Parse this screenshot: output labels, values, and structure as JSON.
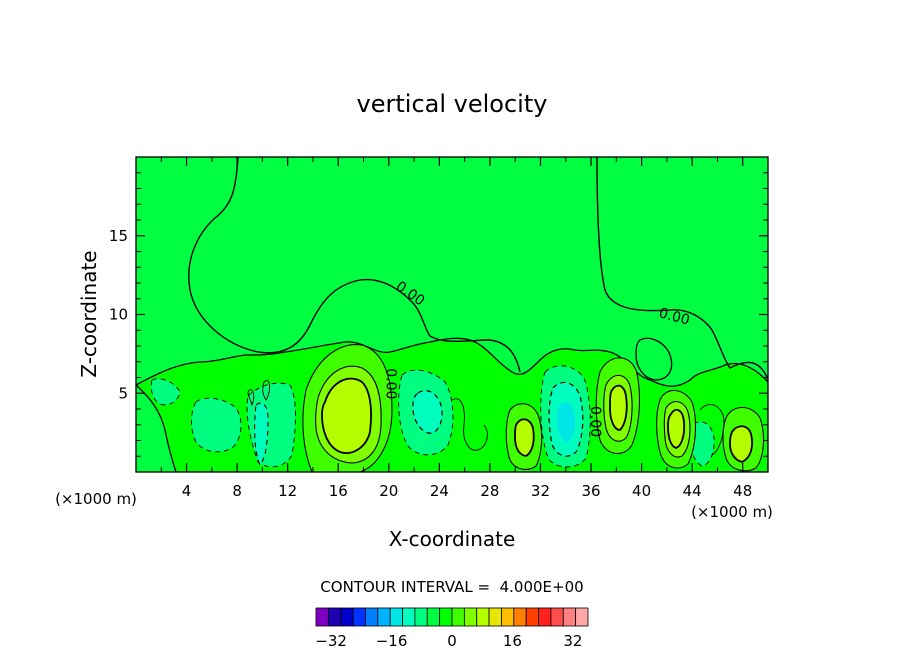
{
  "chart_data": {
    "type": "contour",
    "title": "vertical velocity",
    "xlabel": "X-coordinate",
    "ylabel": "Z-coordinate",
    "x_unit_label": "(×1000 m)",
    "x_unit_label_right": "(×1000 m)",
    "xlim": [
      0,
      50
    ],
    "ylim": [
      0,
      20
    ],
    "x_ticks": [
      4,
      8,
      12,
      16,
      20,
      24,
      28,
      32,
      36,
      40,
      44,
      48
    ],
    "y_ticks": [
      5,
      10,
      15
    ],
    "contour_interval_text": "CONTOUR INTERVAL =  4.000E+00",
    "contour_interval": 4.0,
    "contour_labels": [
      {
        "text": "0.00",
        "x": 21.5,
        "z": 11.1,
        "angle": 35
      },
      {
        "text": "0.00",
        "x": 42.5,
        "z": 9.6,
        "angle": 15
      },
      {
        "text": "0.00",
        "x": 19.8,
        "z": 5.6,
        "angle": 90
      },
      {
        "text": "0.00",
        "x": 36.0,
        "z": 3.2,
        "angle": 90
      }
    ],
    "colorbar": {
      "min": -36,
      "max": 36,
      "step": 4,
      "tick_labels": [
        "-32",
        "-16",
        "0",
        "16",
        "32"
      ],
      "tick_values": [
        -32,
        -16,
        0,
        16,
        32
      ],
      "colors": [
        "#7f00bf",
        "#1f00b3",
        "#0000cc",
        "#0033ff",
        "#0080ff",
        "#00b3ff",
        "#00e6e6",
        "#00ffbf",
        "#00ff80",
        "#00ff40",
        "#00ff00",
        "#40ff00",
        "#80ff00",
        "#b3ff00",
        "#e6e600",
        "#ffbf00",
        "#ff8000",
        "#ff4000",
        "#ff2020",
        "#ff4d4d",
        "#ff8080",
        "#ffa6a6"
      ]
    },
    "features": [
      {
        "kind": "updraft",
        "x": 17.5,
        "z": 3.5,
        "peak": 12
      },
      {
        "kind": "downdraft",
        "x": 23.0,
        "z": 3.5,
        "peak": -8
      },
      {
        "kind": "updraft",
        "x": 30.5,
        "z": 2.3,
        "peak": 8
      },
      {
        "kind": "downdraft",
        "x": 33.5,
        "z": 3.0,
        "peak": -12
      },
      {
        "kind": "updraft",
        "x": 38.5,
        "z": 4.5,
        "peak": 8
      },
      {
        "kind": "updraft",
        "x": 42.8,
        "z": 3.0,
        "peak": 12
      },
      {
        "kind": "downdraft",
        "x": 45.0,
        "z": 2.0,
        "peak": -4
      },
      {
        "kind": "updraft",
        "x": 47.8,
        "z": 2.0,
        "peak": 8
      },
      {
        "kind": "downdraft",
        "x": 6.5,
        "z": 3.0,
        "peak": -4
      },
      {
        "kind": "downdraft",
        "x": 10.0,
        "z": 2.5,
        "peak": -8
      }
    ]
  }
}
